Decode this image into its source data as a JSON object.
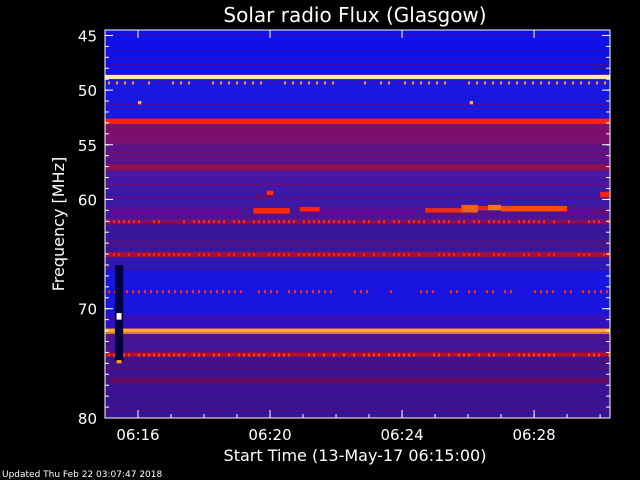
{
  "chart_data": {
    "type": "heatmap",
    "title": "Solar radio Flux (Glasgow)",
    "xlabel": "Start Time (13-May-17 06:15:00)",
    "ylabel": "Frequency [MHz]",
    "x_unit": "minutes after 06:15:00",
    "xlim": [
      0,
      15.3
    ],
    "ylim": [
      44.5,
      80
    ],
    "y_reversed": true,
    "x_ticks": [
      {
        "value": 1,
        "label": "06:16"
      },
      {
        "value": 5,
        "label": "06:20"
      },
      {
        "value": 9,
        "label": "06:24"
      },
      {
        "value": 13,
        "label": "06:28"
      }
    ],
    "y_ticks": [
      {
        "value": 45,
        "label": "45"
      },
      {
        "value": 50,
        "label": "50"
      },
      {
        "value": 55,
        "label": "55"
      },
      {
        "value": 60,
        "label": "60"
      },
      {
        "value": 70,
        "label": "70"
      },
      {
        "value": 80,
        "label": "80"
      }
    ],
    "colormap": [
      "#00007a",
      "#0000ff",
      "#5a00a0",
      "#b00000",
      "#ff2000",
      "#ffa000",
      "#ffffff"
    ],
    "background_color": "#3a1490",
    "bands": [
      {
        "f0": 44.5,
        "f1": 48.6,
        "color": "#1010e8"
      },
      {
        "f0": 48.6,
        "f1": 49.0,
        "color": "#ffe8b0"
      },
      {
        "f0": 49.0,
        "f1": 52.6,
        "color": "#1818e0"
      },
      {
        "f0": 52.6,
        "f1": 53.1,
        "color": "#ff2010"
      },
      {
        "f0": 53.1,
        "f1": 55.0,
        "color": "#7a1070"
      },
      {
        "f0": 55.0,
        "f1": 56.8,
        "color": "#5a1488"
      },
      {
        "f0": 56.8,
        "f1": 57.4,
        "color": "#901050"
      },
      {
        "f0": 57.4,
        "f1": 59.0,
        "color": "#4a18a0"
      },
      {
        "f0": 59.0,
        "f1": 61.8,
        "color": "#3a18a8"
      },
      {
        "f0": 61.8,
        "f1": 62.2,
        "color": "#8a1060"
      },
      {
        "f0": 62.2,
        "f1": 64.8,
        "color": "#3a1898"
      },
      {
        "f0": 64.8,
        "f1": 65.3,
        "color": "#a01040"
      },
      {
        "f0": 65.3,
        "f1": 66.5,
        "color": "#3018b0"
      },
      {
        "f0": 66.5,
        "f1": 70.5,
        "color": "#1a14e0"
      },
      {
        "f0": 70.5,
        "f1": 71.8,
        "color": "#3010c0"
      },
      {
        "f0": 71.8,
        "f1": 72.3,
        "color": "#ffb020"
      },
      {
        "f0": 72.3,
        "f1": 74.0,
        "color": "#4a1490"
      },
      {
        "f0": 74.0,
        "f1": 74.4,
        "color": "#b01030"
      },
      {
        "f0": 74.4,
        "f1": 80.0,
        "color": "#3a1490"
      }
    ],
    "bursts": [
      {
        "t0": 4.5,
        "t1": 5.6,
        "f0": 60.8,
        "f1": 61.3,
        "color": "#ff2a00"
      },
      {
        "t0": 5.9,
        "t1": 6.5,
        "f0": 60.7,
        "f1": 61.1,
        "color": "#ff2a00"
      },
      {
        "t0": 4.9,
        "t1": 5.1,
        "f0": 59.2,
        "f1": 59.6,
        "color": "#ff3000"
      },
      {
        "t0": 9.7,
        "t1": 10.8,
        "f0": 60.8,
        "f1": 61.2,
        "color": "#ff2a00"
      },
      {
        "t0": 10.8,
        "t1": 11.3,
        "f0": 60.5,
        "f1": 61.2,
        "color": "#ff6000"
      },
      {
        "t0": 11.3,
        "t1": 11.6,
        "f0": 60.6,
        "f1": 61.0,
        "color": "#ff2000"
      },
      {
        "t0": 11.6,
        "t1": 12.0,
        "f0": 60.5,
        "f1": 61.0,
        "color": "#ff7a00"
      },
      {
        "t0": 12.0,
        "t1": 14.0,
        "f0": 60.6,
        "f1": 61.1,
        "color": "#ff4a00"
      },
      {
        "t0": 15.0,
        "t1": 15.3,
        "f0": 59.3,
        "f1": 59.8,
        "color": "#ff2000"
      },
      {
        "t0": 1.0,
        "t1": 1.1,
        "f0": 51.0,
        "f1": 51.3,
        "color": "#ffb040"
      },
      {
        "t0": 11.05,
        "t1": 11.15,
        "f0": 51.0,
        "f1": 51.3,
        "color": "#ffb040"
      },
      {
        "t0": 0.35,
        "t1": 0.5,
        "f0": 70.4,
        "f1": 71.0,
        "color": "#ffffff"
      },
      {
        "t0": 0.35,
        "t1": 0.5,
        "f0": 74.7,
        "f1": 75.0,
        "color": "#ffa000"
      }
    ],
    "dropout": {
      "t0": 0.3,
      "t1": 0.55,
      "f0": 66.0,
      "f1": 74.8,
      "color": "#000040"
    }
  },
  "footer": {
    "updated": "Updated Thu Feb 22 03:07:47 2018"
  }
}
